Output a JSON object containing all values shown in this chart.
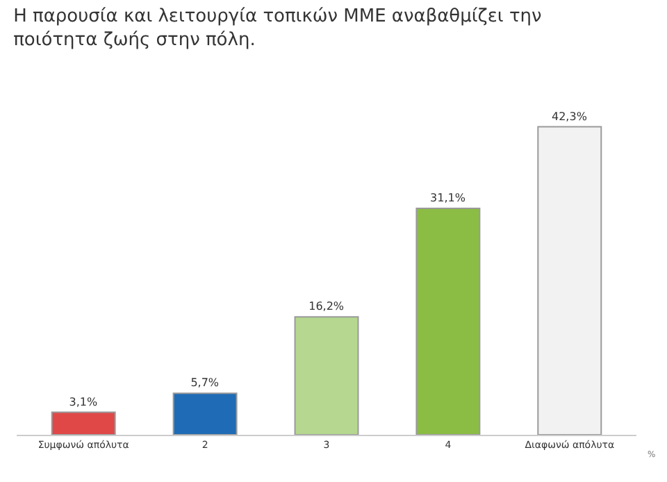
{
  "chart_data": {
    "type": "bar",
    "title": "Η παρουσία και λειτουργία τοπικών ΜΜΕ αναβαθμίζει την\nποιότητα ζωής στην πόλη.",
    "categories": [
      "Συμφωνώ απόλυτα",
      "2",
      "3",
      "4",
      "Διαφωνώ απόλυτα"
    ],
    "values": [
      3.1,
      5.7,
      16.2,
      31.1,
      42.3
    ],
    "colors": [
      "#e04848",
      "#1f6bb5",
      "#b5d78f",
      "#8bbd45",
      "#f2f2f2"
    ],
    "value_labels": [
      "3,1%",
      "5,7%",
      "16,2%",
      "31,1%",
      "42,3%"
    ],
    "annotations": [
      "%"
    ]
  }
}
